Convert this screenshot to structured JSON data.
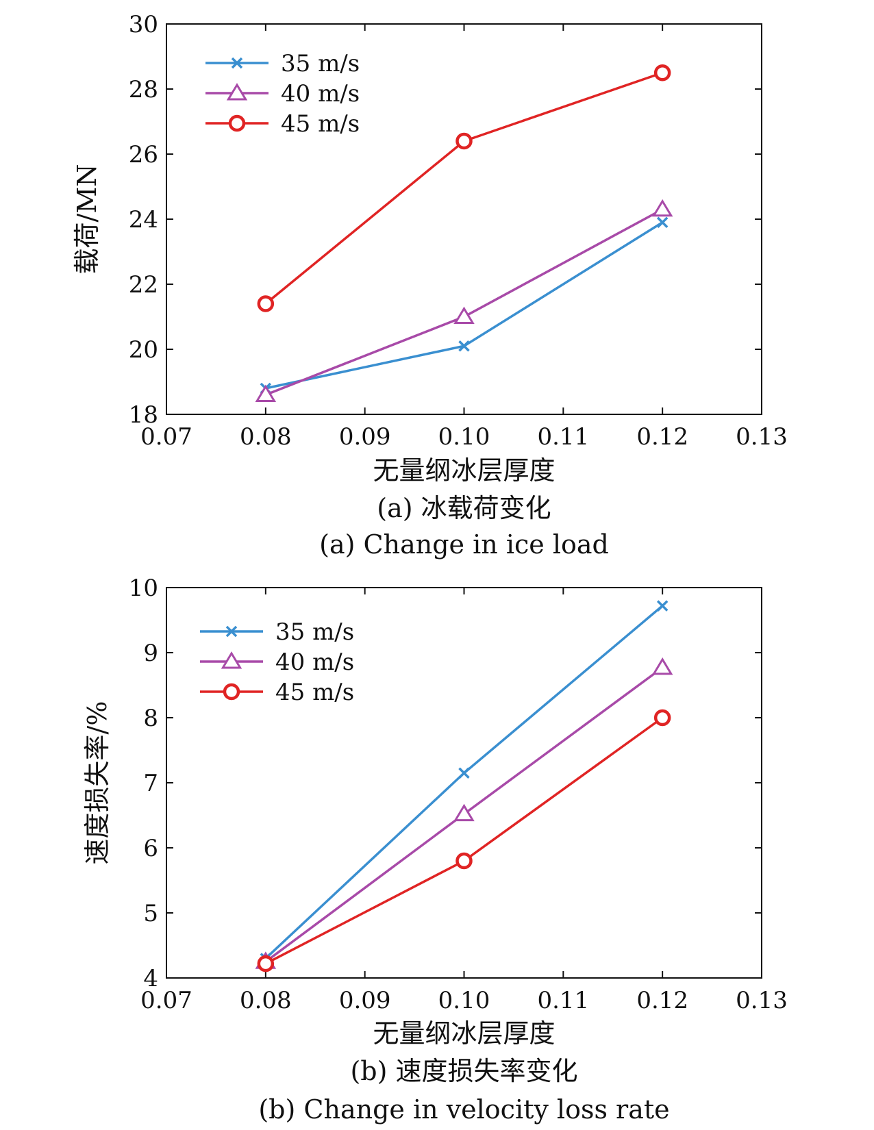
{
  "chart_data": [
    {
      "type": "line",
      "caption_cn": "(a) 冰载荷变化",
      "caption_en": "(a) Change in ice load",
      "xlabel": "无量纲冰层厚度",
      "ylabel": "载荷/MN",
      "xlim": [
        0.07,
        0.13
      ],
      "ylim": [
        18,
        30
      ],
      "xticks": [
        "0.07",
        "0.08",
        "0.09",
        "0.10",
        "0.11",
        "0.12",
        "0.13"
      ],
      "yticks": [
        "18",
        "20",
        "22",
        "24",
        "26",
        "28",
        "30"
      ],
      "x": [
        0.08,
        0.1,
        0.12
      ],
      "legend_position": "top-left",
      "grid": false,
      "series": [
        {
          "name": "35 m/s",
          "color": "#3a8fd0",
          "marker": "x",
          "values": [
            18.8,
            20.1,
            23.9
          ]
        },
        {
          "name": "40 m/s",
          "color": "#a84aa8",
          "marker": "triangle",
          "values": [
            18.6,
            21.0,
            24.3
          ]
        },
        {
          "name": "45 m/s",
          "color": "#e02424",
          "marker": "circle",
          "values": [
            21.4,
            26.4,
            28.5
          ]
        }
      ]
    },
    {
      "type": "line",
      "caption_cn": "(b) 速度损失率变化",
      "caption_en": "(b) Change in velocity loss rate",
      "xlabel": "无量纲冰层厚度",
      "ylabel": "速度损失率/%",
      "xlim": [
        0.07,
        0.13
      ],
      "ylim": [
        4,
        10
      ],
      "xticks": [
        "0.07",
        "0.08",
        "0.09",
        "0.10",
        "0.11",
        "0.12",
        "0.13"
      ],
      "yticks": [
        "4",
        "5",
        "6",
        "7",
        "8",
        "9",
        "10"
      ],
      "x": [
        0.08,
        0.1,
        0.12
      ],
      "legend_position": "top-left",
      "grid": false,
      "series": [
        {
          "name": "35 m/s",
          "color": "#3a8fd0",
          "marker": "x",
          "values": [
            4.3,
            7.15,
            9.72
          ]
        },
        {
          "name": "40 m/s",
          "color": "#a84aa8",
          "marker": "triangle",
          "values": [
            4.25,
            6.52,
            8.77
          ]
        },
        {
          "name": "45 m/s",
          "color": "#e02424",
          "marker": "circle",
          "values": [
            4.22,
            5.8,
            8.0
          ]
        }
      ]
    }
  ]
}
